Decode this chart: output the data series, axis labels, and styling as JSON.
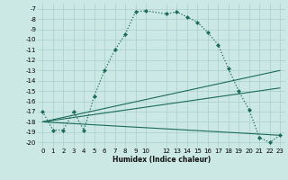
{
  "title": "",
  "xlabel": "Humidex (Indice chaleur)",
  "ylabel": "",
  "background_color": "#cce8e4",
  "grid_color": "#aacfcc",
  "line_color": "#1a6b5a",
  "xlim": [
    -0.5,
    23.5
  ],
  "ylim": [
    -20.5,
    -6.5
  ],
  "xticks": [
    0,
    1,
    2,
    3,
    4,
    5,
    6,
    7,
    8,
    9,
    10,
    12,
    13,
    14,
    15,
    16,
    17,
    18,
    19,
    20,
    21,
    22,
    23
  ],
  "yticks": [
    -7,
    -8,
    -9,
    -10,
    -11,
    -12,
    -13,
    -14,
    -15,
    -16,
    -17,
    -18,
    -19,
    -20
  ],
  "main_line": {
    "x": [
      0,
      1,
      2,
      3,
      4,
      5,
      6,
      7,
      8,
      9,
      10,
      12,
      13,
      14,
      15,
      16,
      17,
      18,
      19,
      20,
      21,
      22,
      23
    ],
    "y": [
      -17.0,
      -18.8,
      -18.8,
      -17.0,
      -18.8,
      -15.5,
      -13.0,
      -11.0,
      -9.5,
      -7.3,
      -7.2,
      -7.5,
      -7.3,
      -7.8,
      -8.3,
      -9.3,
      -10.5,
      -12.8,
      -15.0,
      -16.8,
      -19.5,
      -20.0,
      -19.3
    ]
  },
  "trend_lines": [
    {
      "x": [
        0,
        23
      ],
      "y": [
        -18.0,
        -19.3
      ]
    },
    {
      "x": [
        0,
        23
      ],
      "y": [
        -18.0,
        -14.7
      ]
    },
    {
      "x": [
        0,
        23
      ],
      "y": [
        -18.0,
        -13.0
      ]
    }
  ]
}
